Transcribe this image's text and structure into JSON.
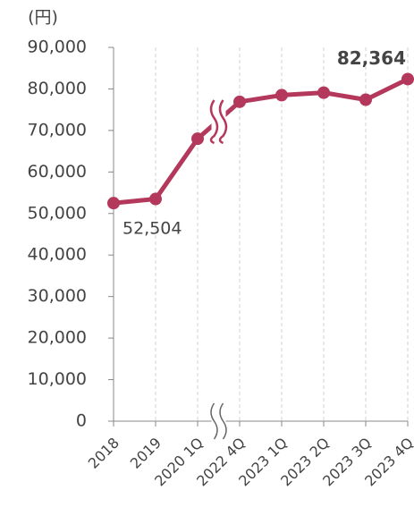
{
  "chart_data": {
    "type": "line",
    "y_label": "(円)",
    "categories": [
      "2018",
      "2019",
      "2020 1Q",
      "2022 4Q",
      "2023 1Q",
      "2023 2Q",
      "2023 3Q",
      "2023 4Q"
    ],
    "series": [
      {
        "name": "value",
        "color": "#b3385b",
        "values": [
          52504,
          53500,
          68000,
          76900,
          78500,
          79100,
          77400,
          82364
        ],
        "value_labels": [
          "52,504",
          null,
          null,
          null,
          null,
          null,
          null,
          "82,364"
        ]
      }
    ],
    "ylim": [
      0,
      90000
    ],
    "yticks": [
      0,
      {
        "value": 10000,
        "label": "10,000"
      },
      {
        "value": 20000,
        "label": "20,000"
      },
      {
        "value": 30000,
        "label": "30,000"
      },
      {
        "value": 40000,
        "label": "40,000"
      },
      {
        "value": 50000,
        "label": "50,000"
      },
      {
        "value": 60000,
        "label": "60,000"
      },
      {
        "value": 70000,
        "label": "70,000"
      },
      {
        "value": 80000,
        "label": "80,000"
      },
      {
        "value": 90000,
        "label": "90,000"
      }
    ],
    "grid": "x"
  }
}
